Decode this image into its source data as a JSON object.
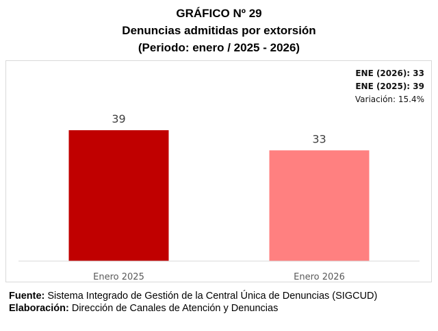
{
  "header": {
    "title": "GRÁFICO Nº 29",
    "subtitle": "Denuncias admitidas por extorsión",
    "period": "(Periodo: enero / 2025 - 2026)"
  },
  "summary": {
    "line1": "ENE (2026): 33",
    "line2": "ENE (2025): 39",
    "line3": "Variación: 15.4%"
  },
  "chart_data": {
    "type": "bar",
    "title": "Denuncias admitidas por extorsión",
    "categories": [
      "Enero 2025",
      "Enero 2026"
    ],
    "values": [
      39,
      33
    ],
    "data_labels": [
      "39",
      "33"
    ],
    "colors": [
      "#c00000",
      "#ff8080"
    ],
    "ylim": [
      0,
      39
    ],
    "grid": false,
    "legend": "none"
  },
  "footer": {
    "source_label": "Fuente:",
    "source_text": "Sistema Integrado de Gestión de la Central Única de Denuncias (SIGCUD)",
    "prepared_label": "Elaboración:",
    "prepared_text": "Dirección de Canales de Atención y Denuncias"
  }
}
